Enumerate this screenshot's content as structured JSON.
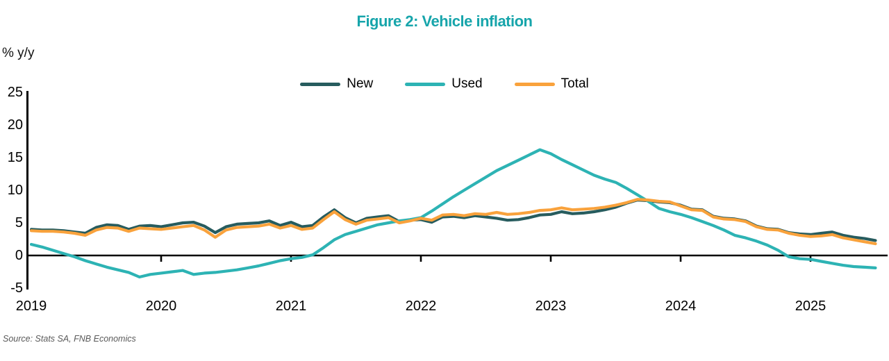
{
  "title": "Figure 2: Vehicle inflation",
  "y_axis_label": "% y/y",
  "source": "Source: Stats SA, FNB Economics",
  "colors": {
    "title": "#17a5ab",
    "new": "#275c5e",
    "used": "#2db3b4",
    "total": "#f9a23c",
    "axis": "#000000",
    "source_text": "#595959"
  },
  "legend": [
    {
      "label": "New",
      "color_key": "new"
    },
    {
      "label": "Used",
      "color_key": "used"
    },
    {
      "label": "Total",
      "color_key": "total"
    }
  ],
  "chart_data": {
    "type": "line",
    "frequency": "monthly",
    "start": "2019-01",
    "end": "2025-07",
    "x_tick_labels": [
      "2019",
      "2020",
      "2021",
      "2022",
      "2023",
      "2024",
      "2025"
    ],
    "y_ticks": [
      25,
      20,
      15,
      10,
      5,
      0,
      -5
    ],
    "ylim": [
      -5,
      25
    ],
    "grid": false,
    "legend_position": "top-center",
    "series": [
      {
        "name": "New",
        "color_key": "new",
        "values": [
          4.0,
          3.9,
          3.9,
          3.8,
          3.6,
          3.4,
          4.3,
          4.7,
          4.6,
          4.0,
          4.5,
          4.6,
          4.4,
          4.7,
          5.0,
          5.1,
          4.5,
          3.5,
          4.4,
          4.8,
          4.9,
          5.0,
          5.3,
          4.6,
          5.1,
          4.4,
          4.6,
          5.9,
          7.0,
          5.8,
          5.0,
          5.7,
          5.9,
          6.1,
          5.2,
          5.4,
          5.5,
          5.1,
          5.9,
          6.0,
          5.8,
          6.1,
          5.9,
          5.7,
          5.4,
          5.5,
          5.8,
          6.2,
          6.3,
          6.7,
          6.4,
          6.5,
          6.7,
          7.0,
          7.4,
          8.0,
          8.5,
          8.4,
          8.2,
          8.1,
          7.7,
          7.1,
          7.0,
          6.0,
          5.7,
          5.6,
          5.3,
          4.5,
          4.1,
          4.0,
          3.5,
          3.3,
          3.2,
          3.4,
          3.6,
          3.1,
          2.8,
          2.6,
          2.3
        ]
      },
      {
        "name": "Used",
        "color_key": "used",
        "values": [
          1.7,
          1.3,
          0.8,
          0.3,
          -0.2,
          -0.8,
          -1.3,
          -1.8,
          -2.2,
          -2.6,
          -3.3,
          -2.9,
          -2.7,
          -2.5,
          -2.3,
          -2.9,
          -2.7,
          -2.6,
          -2.4,
          -2.2,
          -1.9,
          -1.6,
          -1.2,
          -0.8,
          -0.5,
          -0.3,
          0.1,
          1.2,
          2.4,
          3.2,
          3.7,
          4.2,
          4.7,
          5.0,
          5.3,
          5.5,
          5.8,
          6.8,
          7.9,
          9.0,
          10.0,
          11.0,
          12.0,
          13.0,
          13.8,
          14.6,
          15.4,
          16.2,
          15.6,
          14.7,
          13.9,
          13.1,
          12.3,
          11.7,
          11.2,
          10.3,
          9.3,
          8.3,
          7.2,
          6.7,
          6.3,
          5.8,
          5.2,
          4.6,
          3.9,
          3.1,
          2.7,
          2.2,
          1.6,
          0.8,
          -0.2,
          -0.5,
          -0.6,
          -0.9,
          -1.2,
          -1.5,
          -1.7,
          -1.8,
          -1.9
        ]
      },
      {
        "name": "Total",
        "color_key": "total",
        "values": [
          3.8,
          3.7,
          3.7,
          3.6,
          3.4,
          3.1,
          3.9,
          4.3,
          4.2,
          3.7,
          4.2,
          4.1,
          4.0,
          4.2,
          4.4,
          4.6,
          3.9,
          2.8,
          3.9,
          4.3,
          4.4,
          4.5,
          4.8,
          4.2,
          4.6,
          4.0,
          4.2,
          5.5,
          6.7,
          5.5,
          4.8,
          5.4,
          5.6,
          5.8,
          5.0,
          5.3,
          5.7,
          5.4,
          6.2,
          6.3,
          6.1,
          6.4,
          6.3,
          6.6,
          6.3,
          6.4,
          6.6,
          6.9,
          7.0,
          7.3,
          7.0,
          7.1,
          7.2,
          7.4,
          7.7,
          8.1,
          8.6,
          8.5,
          8.3,
          8.2,
          7.6,
          7.0,
          6.9,
          5.9,
          5.6,
          5.5,
          5.2,
          4.4,
          4.0,
          3.9,
          3.4,
          3.1,
          2.9,
          3.0,
          3.2,
          2.7,
          2.4,
          2.1,
          1.8
        ]
      }
    ]
  }
}
